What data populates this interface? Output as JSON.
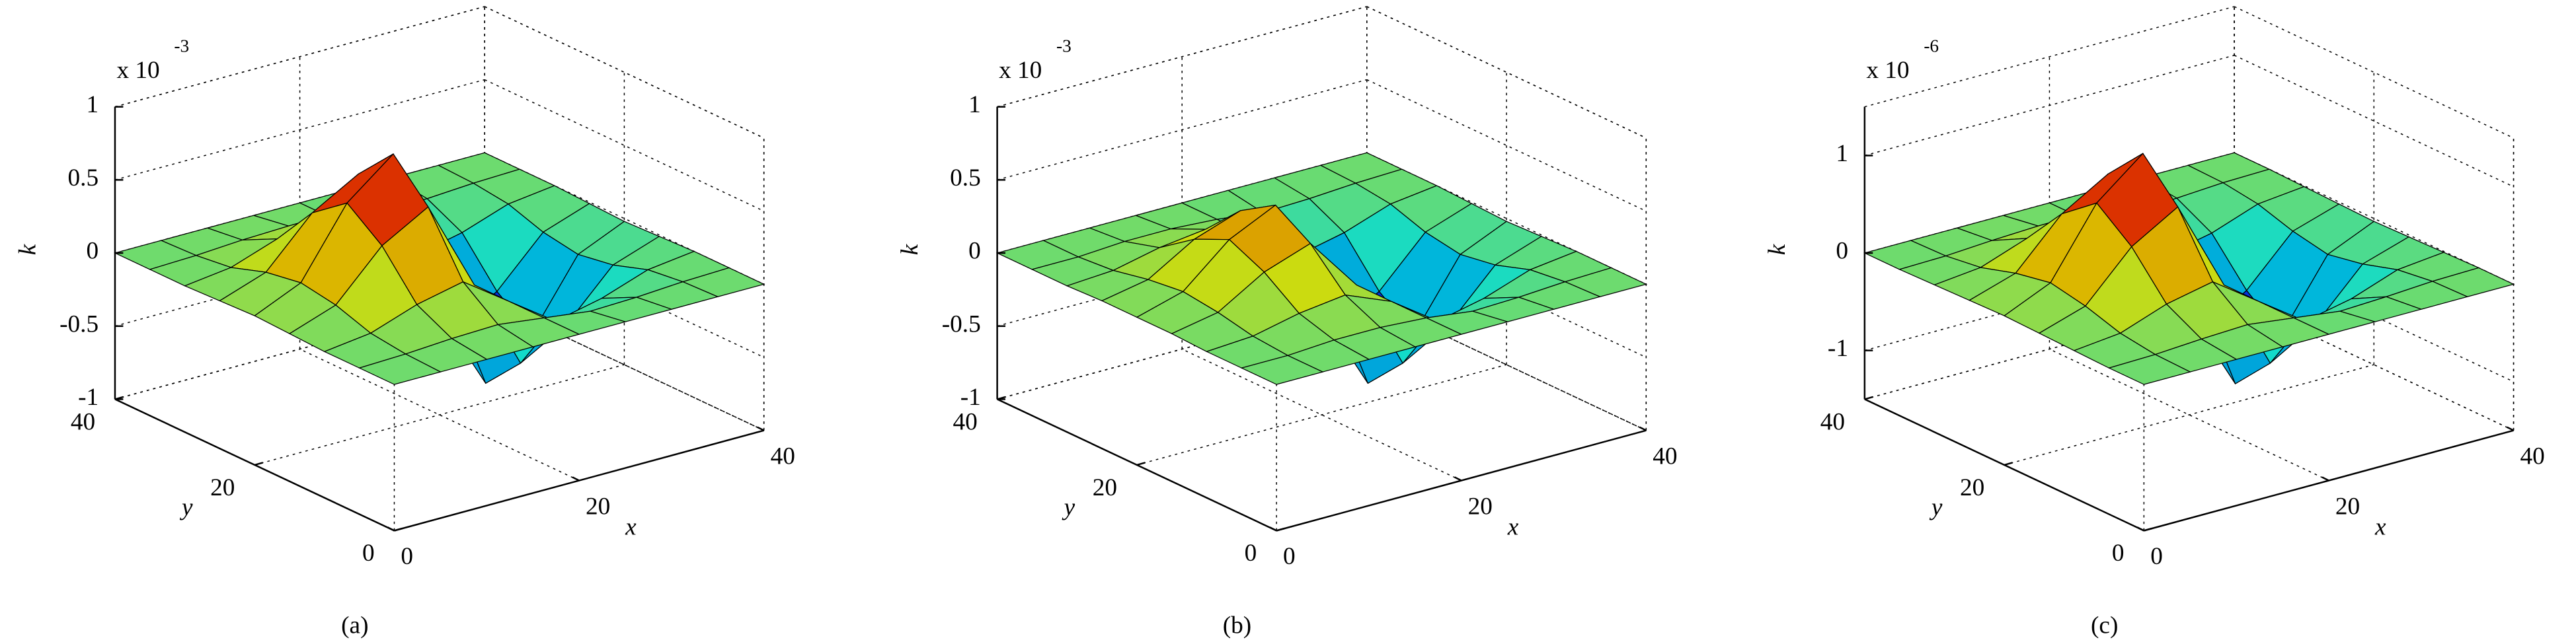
{
  "chart_data": [
    {
      "type": "surface",
      "caption": "(a)",
      "xlabel": "x",
      "ylabel": "y",
      "zlabel": "k",
      "multiplier": {
        "base": "x 10",
        "exponent": "-3"
      },
      "x": [
        0,
        5,
        10,
        15,
        20,
        25,
        30,
        35,
        40
      ],
      "y": [
        0,
        5,
        10,
        15,
        20,
        25,
        30,
        35,
        40
      ],
      "z": [
        [
          0,
          0,
          0,
          0,
          0,
          0,
          0,
          0,
          0
        ],
        [
          0,
          0.01,
          0.03,
          0.04,
          0,
          -0.04,
          -0.03,
          -0.01,
          0
        ],
        [
          0,
          0.04,
          0.15,
          0.22,
          0,
          -0.22,
          -0.15,
          -0.04,
          0
        ],
        [
          0.01,
          0.12,
          0.44,
          0.62,
          0,
          -0.62,
          -0.44,
          -0.12,
          -0.01
        ],
        [
          0.02,
          0.16,
          0.62,
          0.87,
          0,
          -0.87,
          -0.62,
          -0.16,
          -0.02
        ],
        [
          0.01,
          0.12,
          0.44,
          0.62,
          0,
          -0.62,
          -0.44,
          -0.12,
          -0.01
        ],
        [
          0,
          0.04,
          0.15,
          0.22,
          0,
          -0.22,
          -0.15,
          -0.04,
          0
        ],
        [
          0,
          0.01,
          0.03,
          0.04,
          0,
          -0.04,
          -0.03,
          -0.01,
          0
        ],
        [
          0,
          0,
          0,
          0,
          0,
          0,
          0,
          0,
          0
        ]
      ],
      "xlim": [
        0,
        40
      ],
      "ylim": [
        0,
        40
      ],
      "zlim": [
        -1,
        1
      ],
      "xticks": [
        0,
        20,
        40
      ],
      "yticks": [
        0,
        20,
        40
      ],
      "zticks": [
        -1,
        -0.5,
        0,
        0.5,
        1
      ],
      "colormap": "jet",
      "grid": true
    },
    {
      "type": "surface",
      "caption": "(b)",
      "xlabel": "x",
      "ylabel": "y",
      "zlabel": "k",
      "multiplier": {
        "base": "x 10",
        "exponent": "-3"
      },
      "x": [
        0,
        5,
        10,
        15,
        20,
        25,
        30,
        35,
        40
      ],
      "y": [
        0,
        5,
        10,
        15,
        20,
        25,
        30,
        35,
        40
      ],
      "z": [
        [
          0,
          0,
          0,
          0,
          0,
          0,
          0,
          0,
          0
        ],
        [
          0,
          0,
          0.02,
          0.02,
          0,
          -0.04,
          -0.03,
          -0.01,
          0
        ],
        [
          0,
          0.02,
          0.09,
          0.13,
          0,
          -0.22,
          -0.15,
          -0.04,
          0
        ],
        [
          0.01,
          0.07,
          0.26,
          0.37,
          0,
          -0.62,
          -0.44,
          -0.12,
          -0.01
        ],
        [
          0.01,
          0.1,
          0.37,
          0.52,
          0,
          -0.87,
          -0.62,
          -0.16,
          -0.02
        ],
        [
          0.01,
          0.07,
          0.26,
          0.37,
          0,
          -0.62,
          -0.44,
          -0.12,
          -0.01
        ],
        [
          0,
          0.02,
          0.09,
          0.13,
          0,
          -0.22,
          -0.15,
          -0.04,
          0
        ],
        [
          0,
          0,
          0.02,
          0.02,
          0,
          -0.04,
          -0.03,
          -0.01,
          0
        ],
        [
          0,
          0,
          0,
          0,
          0,
          0,
          0,
          0,
          0
        ]
      ],
      "xlim": [
        0,
        40
      ],
      "ylim": [
        0,
        40
      ],
      "zlim": [
        -1,
        1
      ],
      "xticks": [
        0,
        20,
        40
      ],
      "yticks": [
        0,
        20,
        40
      ],
      "zticks": [
        -1,
        -0.5,
        0,
        0.5,
        1
      ],
      "colormap": "jet",
      "grid": true
    },
    {
      "type": "surface",
      "caption": "(c)",
      "xlabel": "x",
      "ylabel": "y",
      "zlabel": "k",
      "multiplier": {
        "base": "x 10",
        "exponent": "-6"
      },
      "x": [
        0,
        5,
        10,
        15,
        20,
        25,
        30,
        35,
        40
      ],
      "y": [
        0,
        5,
        10,
        15,
        20,
        25,
        30,
        35,
        40
      ],
      "z": [
        [
          0,
          0,
          0,
          0,
          0,
          0,
          0,
          0,
          0
        ],
        [
          0,
          0.01,
          0.04,
          0.06,
          0,
          -0.06,
          -0.04,
          -0.01,
          0
        ],
        [
          0.01,
          0.06,
          0.23,
          0.33,
          0,
          -0.33,
          -0.23,
          -0.06,
          -0.01
        ],
        [
          0.02,
          0.17,
          0.65,
          0.93,
          0,
          -0.93,
          -0.65,
          -0.17,
          -0.02
        ],
        [
          0.03,
          0.24,
          0.93,
          1.31,
          0,
          -1.31,
          -0.93,
          -0.24,
          -0.03
        ],
        [
          0.02,
          0.17,
          0.65,
          0.93,
          0,
          -0.93,
          -0.65,
          -0.17,
          -0.02
        ],
        [
          0.01,
          0.06,
          0.23,
          0.33,
          0,
          -0.33,
          -0.23,
          -0.06,
          -0.01
        ],
        [
          0,
          0.01,
          0.04,
          0.06,
          0,
          -0.06,
          -0.04,
          -0.01,
          0
        ],
        [
          0,
          0,
          0,
          0,
          0,
          0,
          0,
          0,
          0
        ]
      ],
      "xlim": [
        0,
        40
      ],
      "ylim": [
        0,
        40
      ],
      "zlim": [
        -1.5,
        1.5
      ],
      "xticks": [
        0,
        20,
        40
      ],
      "yticks": [
        0,
        20,
        40
      ],
      "zticks": [
        -1,
        0,
        1
      ],
      "colormap": "jet",
      "grid": true
    }
  ]
}
